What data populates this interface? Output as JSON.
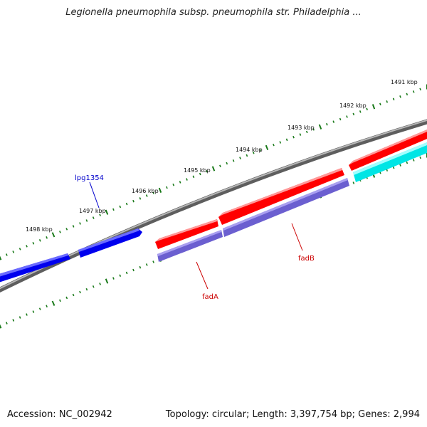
{
  "title": "Legionella pneumophila subsp. pneumophila str. Philadelphia ...",
  "footer": {
    "accession": "Accession: NC_002942",
    "summary": "Topology: circular; Length: 3,397,754 bp; Genes: 2,994"
  },
  "ruler": {
    "labels": [
      "1491 kbp",
      "1492 kbp",
      "1493 kbp",
      "1494 kbp",
      "1495 kbp",
      "1496 kbp",
      "1497 kbp",
      "1498 kbp"
    ],
    "tick_color": "#1a7a1a"
  },
  "genes": [
    {
      "name": "lpg1354",
      "color": "#0000ee",
      "label_color": "#0000cc"
    },
    {
      "name": "fadB",
      "color": "#ff0000",
      "label_color": "#cc0000"
    },
    {
      "name": "fadA",
      "color": "#ff0000",
      "label_color": "#cc0000"
    }
  ],
  "colors": {
    "forward_gene": "#ff0000",
    "reverse_gene": "#0000ee",
    "cog_track": "#6b5fd0",
    "cyan_track": "#00e5e5",
    "backbone": "#888888"
  }
}
